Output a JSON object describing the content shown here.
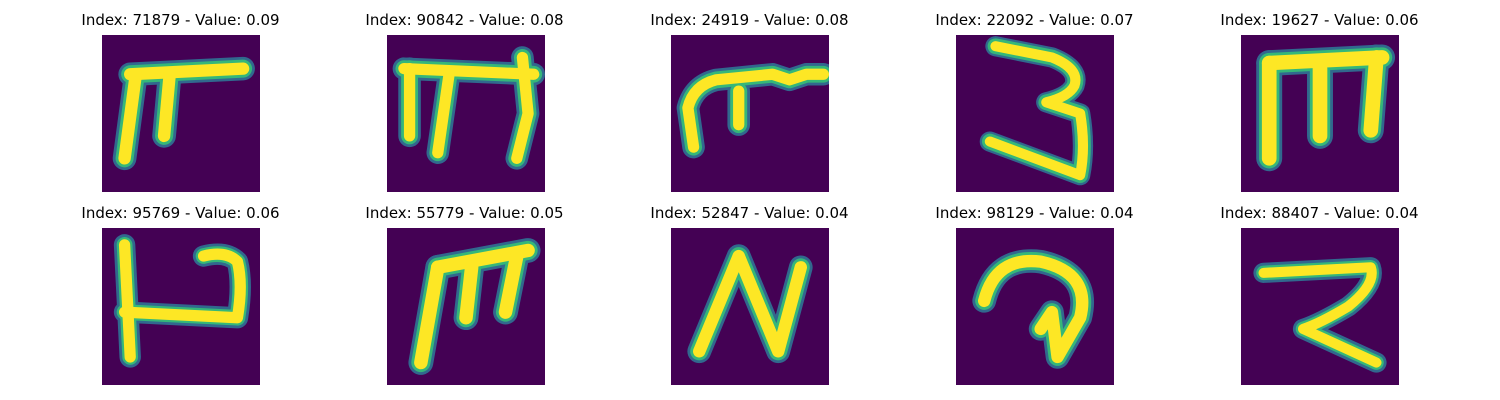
{
  "colors": {
    "background_low": "#440154",
    "mid1": "#31688e",
    "mid2": "#35b779",
    "high": "#fde725"
  },
  "panels": [
    {
      "title": "Index: 71879 - Value: 0.09",
      "index": 71879,
      "value": 0.09,
      "glyph_icon": "glyph-71879-icon"
    },
    {
      "title": "Index: 90842 - Value: 0.08",
      "index": 90842,
      "value": 0.08,
      "glyph_icon": "glyph-90842-icon"
    },
    {
      "title": "Index: 24919 - Value: 0.08",
      "index": 24919,
      "value": 0.08,
      "glyph_icon": "glyph-24919-icon"
    },
    {
      "title": "Index: 22092 - Value: 0.07",
      "index": 22092,
      "value": 0.07,
      "glyph_icon": "glyph-22092-icon"
    },
    {
      "title": "Index: 19627 - Value: 0.06",
      "index": 19627,
      "value": 0.06,
      "glyph_icon": "glyph-19627-icon"
    },
    {
      "title": "Index: 95769 - Value: 0.06",
      "index": 95769,
      "value": 0.06,
      "glyph_icon": "glyph-95769-icon"
    },
    {
      "title": "Index: 55779 - Value: 0.05",
      "index": 55779,
      "value": 0.05,
      "glyph_icon": "glyph-55779-icon"
    },
    {
      "title": "Index: 52847 - Value: 0.04",
      "index": 52847,
      "value": 0.04,
      "glyph_icon": "glyph-52847-icon"
    },
    {
      "title": "Index: 98129 - Value: 0.04",
      "index": 98129,
      "value": 0.04,
      "glyph_icon": "glyph-98129-icon"
    },
    {
      "title": "Index: 88407 - Value: 0.04",
      "index": 88407,
      "value": 0.04,
      "glyph_icon": "glyph-88407-icon"
    }
  ]
}
